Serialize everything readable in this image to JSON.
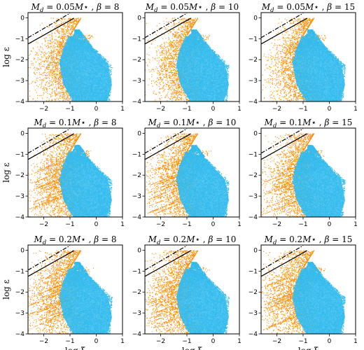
{
  "chart_data": {
    "type": "scatter",
    "layout": {
      "rows": 3,
      "cols": 3
    },
    "xlabel": "log ξ",
    "ylabel": "log ε",
    "xlim": [
      -2.6,
      1.0
    ],
    "ylim": [
      -4.0,
      0.25
    ],
    "xticks": [
      -2,
      -1,
      0,
      1
    ],
    "xtick_labels": [
      "−2",
      "−1",
      "0",
      "1"
    ],
    "yticks": [
      -4,
      -3,
      -2,
      -1,
      0
    ],
    "ytick_labels": [
      "−4",
      "−3",
      "−2",
      "−1",
      "0"
    ],
    "colors": {
      "series_a": "#ff8c00",
      "series_b": "#33bbee",
      "solid_line": "#000000",
      "dashdot_line": "#000000"
    },
    "reference_lines": [
      {
        "style": "solid",
        "x": [
          -2.6,
          -0.85
        ],
        "y": [
          -1.25,
          -0.02
        ]
      },
      {
        "style": "dashdot",
        "x": [
          -2.6,
          -1.0
        ],
        "y": [
          -0.95,
          0.22
        ]
      }
    ],
    "panels": [
      {
        "title": "M_d = 0.05M⋆, β = 8",
        "md": "0.05",
        "beta": "8"
      },
      {
        "title": "M_d = 0.05M⋆, β = 10",
        "md": "0.05",
        "beta": "10"
      },
      {
        "title": "M_d = 0.05M⋆, β = 15",
        "md": "0.05",
        "beta": "15"
      },
      {
        "title": "M_d = 0.1M⋆, β = 8",
        "md": "0.1",
        "beta": "8"
      },
      {
        "title": "M_d = 0.1M⋆, β = 10",
        "md": "0.1",
        "beta": "10"
      },
      {
        "title": "M_d = 0.1M⋆, β = 15",
        "md": "0.1",
        "beta": "15"
      },
      {
        "title": "M_d = 0.2M⋆, β = 8",
        "md": "0.2",
        "beta": "8"
      },
      {
        "title": "M_d = 0.2M⋆, β = 10",
        "md": "0.2",
        "beta": "10"
      },
      {
        "title": "M_d = 0.2M⋆, β = 15",
        "md": "0.2",
        "beta": "15"
      }
    ]
  }
}
